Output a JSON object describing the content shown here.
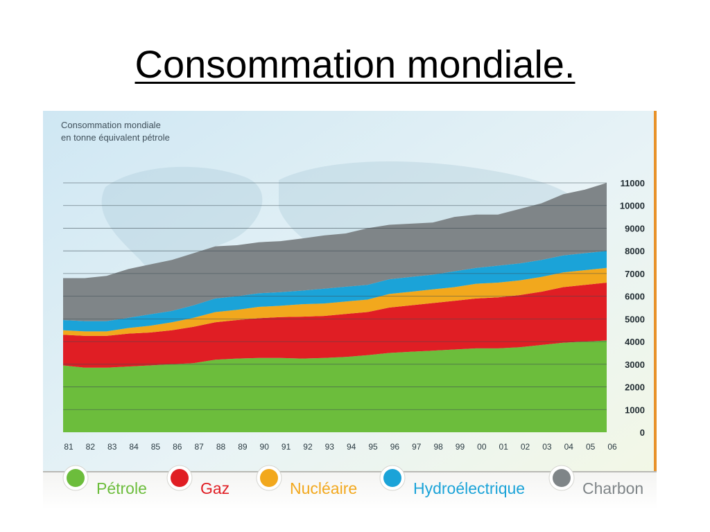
{
  "slide": {
    "title": "Consommation mondiale."
  },
  "chart_data": {
    "type": "area",
    "stacked": true,
    "title": "Consommation mondiale",
    "subtitle": "en tonne équivalent pétrole",
    "categories": [
      "81",
      "82",
      "83",
      "84",
      "85",
      "86",
      "87",
      "88",
      "89",
      "90",
      "91",
      "92",
      "93",
      "94",
      "95",
      "96",
      "97",
      "98",
      "99",
      "00",
      "01",
      "02",
      "03",
      "04",
      "05",
      "06"
    ],
    "y_ticks": [
      0,
      1000,
      2000,
      3000,
      4000,
      5000,
      6000,
      7000,
      8000,
      9000,
      10000,
      11000
    ],
    "ylim": [
      0,
      11000
    ],
    "y_axis_position": "right",
    "grid": true,
    "legend_placement": "bottom",
    "series": [
      {
        "name": "Pétrole",
        "color": "#6cbd3c",
        "values": [
          2950,
          2850,
          2850,
          2900,
          2950,
          3000,
          3050,
          3200,
          3250,
          3280,
          3280,
          3250,
          3280,
          3320,
          3400,
          3500,
          3550,
          3600,
          3650,
          3700,
          3700,
          3750,
          3850,
          3950,
          4000,
          4050
        ]
      },
      {
        "name": "Gaz",
        "color": "#e01e24",
        "values": [
          1350,
          1400,
          1400,
          1450,
          1450,
          1500,
          1600,
          1650,
          1700,
          1750,
          1800,
          1850,
          1850,
          1900,
          1900,
          2000,
          2050,
          2100,
          2150,
          2200,
          2250,
          2300,
          2350,
          2450,
          2500,
          2550
        ]
      },
      {
        "name": "Nucléaire",
        "color": "#f2a81d",
        "values": [
          200,
          200,
          200,
          250,
          300,
          350,
          400,
          450,
          450,
          500,
          500,
          550,
          550,
          550,
          550,
          600,
          600,
          600,
          600,
          650,
          650,
          650,
          650,
          650,
          650,
          650
        ]
      },
      {
        "name": "Hydroélectrique",
        "color": "#1ba3d8",
        "values": [
          450,
          450,
          450,
          450,
          500,
          500,
          550,
          600,
          600,
          600,
          600,
          600,
          650,
          650,
          650,
          650,
          650,
          650,
          700,
          700,
          750,
          750,
          750,
          750,
          750,
          750
        ]
      },
      {
        "name": "Charbon",
        "color": "#7f8588",
        "values": [
          1850,
          1900,
          2000,
          2150,
          2200,
          2250,
          2300,
          2300,
          2250,
          2250,
          2250,
          2300,
          2350,
          2350,
          2500,
          2400,
          2350,
          2300,
          2400,
          2350,
          2250,
          2400,
          2500,
          2700,
          2800,
          3000
        ]
      }
    ]
  }
}
